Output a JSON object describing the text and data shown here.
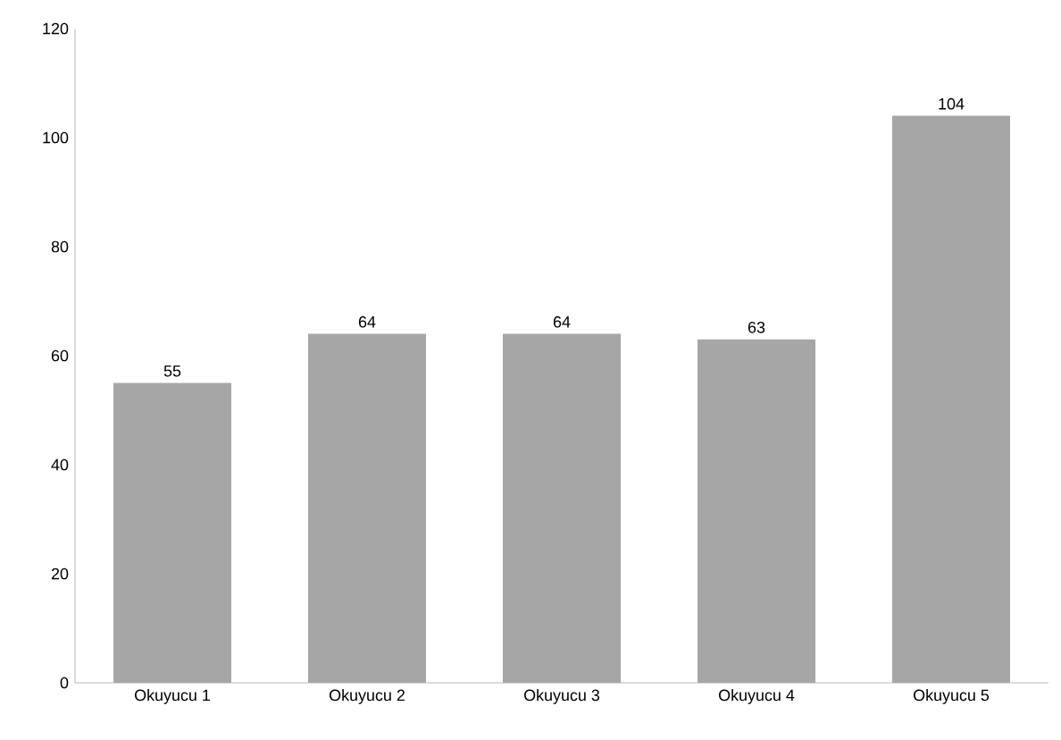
{
  "chart_data": {
    "type": "bar",
    "categories": [
      "Okuyucu 1",
      "Okuyucu 2",
      "Okuyucu 3",
      "Okuyucu 4",
      "Okuyucu 5"
    ],
    "values": [
      55,
      64,
      64,
      63,
      104
    ],
    "color": "#a6a6a6",
    "ylim": [
      0,
      120
    ],
    "yticks": [
      0,
      20,
      40,
      60,
      80,
      100,
      120
    ],
    "data_labels": true
  }
}
